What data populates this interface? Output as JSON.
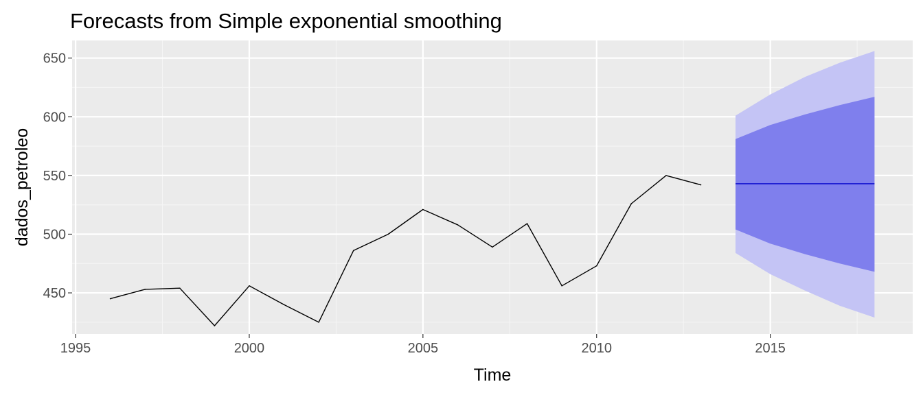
{
  "chart_data": {
    "type": "line",
    "title": "Forecasts from Simple exponential smoothing",
    "xlabel": "Time",
    "ylabel": "dados_petroleo",
    "xlim": [
      1994.9,
      2019.1
    ],
    "ylim": [
      415,
      665
    ],
    "x_ticks": [
      1995,
      2000,
      2005,
      2010,
      2015
    ],
    "y_ticks": [
      450,
      500,
      550,
      600,
      650
    ],
    "grid": true,
    "legend": "none",
    "colors": {
      "panel_background": "#ebebeb",
      "grid_major": "#ffffff",
      "grid_minor": "#f5f5f5",
      "observed_line": "#000000",
      "forecast_line": "#0000cc",
      "band_80": "#7f7fed",
      "band_95": "#c4c4f5"
    },
    "series": [
      {
        "x": [
          1996,
          1997,
          1998,
          1999,
          2000,
          2001,
          2002,
          2003,
          2004,
          2005,
          2006,
          2007,
          2008,
          2009,
          2010,
          2011,
          2012,
          2013
        ],
        "values": [
          445,
          453,
          454,
          422,
          456,
          440,
          425,
          486,
          500,
          521,
          508,
          489,
          509,
          456,
          473,
          526,
          550,
          542
        ]
      }
    ],
    "forecast": {
      "x": [
        2014,
        2015,
        2016,
        2017,
        2018
      ],
      "mean": [
        543,
        543,
        543,
        543,
        543
      ],
      "lo80": [
        504,
        492,
        483,
        475,
        468
      ],
      "hi80": [
        581,
        593,
        602,
        610,
        617
      ],
      "lo95": [
        484,
        466,
        452,
        439,
        429
      ],
      "hi95": [
        601,
        619,
        634,
        646,
        656
      ]
    }
  }
}
